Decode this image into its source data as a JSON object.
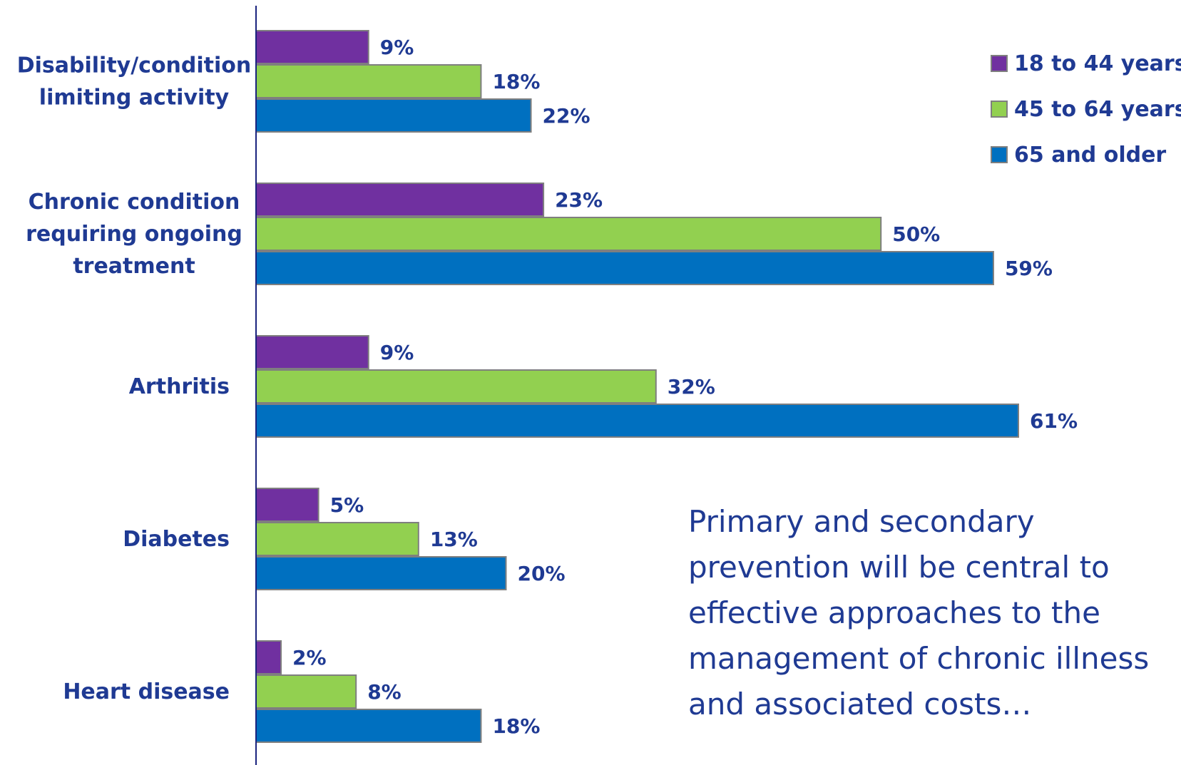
{
  "chart_data": {
    "type": "bar",
    "orientation": "horizontal",
    "categories": [
      [
        "Disability/condition",
        "limiting activity"
      ],
      [
        "Chronic condition",
        "requiring ongoing",
        "treatment"
      ],
      [
        "Arthritis"
      ],
      [
        "Diabetes"
      ],
      [
        "Heart disease"
      ]
    ],
    "series": [
      {
        "name": "18 to 44 years",
        "values": [
          9,
          23,
          9,
          5,
          2
        ],
        "labels": [
          "9%",
          "23%",
          "9%",
          "5%",
          "2%"
        ],
        "color": "#7030A0"
      },
      {
        "name": "45 to 64 years",
        "values": [
          18,
          50,
          32,
          13,
          8
        ],
        "labels": [
          "18%",
          "50%",
          "32%",
          "13%",
          "8%"
        ],
        "color": "#92D050"
      },
      {
        "name": "65 and older",
        "values": [
          22,
          59,
          61,
          20,
          18
        ],
        "labels": [
          "22%",
          "59%",
          "61%",
          "20%",
          "18%"
        ],
        "color": "#0070C0"
      }
    ],
    "xlim": [
      0,
      61
    ],
    "grid": false,
    "legend_position": "top-right"
  },
  "note": "Primary and secondary prevention will be central to effective approaches to the management of chronic illness and associated costs…",
  "colors": {
    "text": "#1F3A93",
    "axis": "#1a237e",
    "bar_outline": "#7f7f7f"
  }
}
